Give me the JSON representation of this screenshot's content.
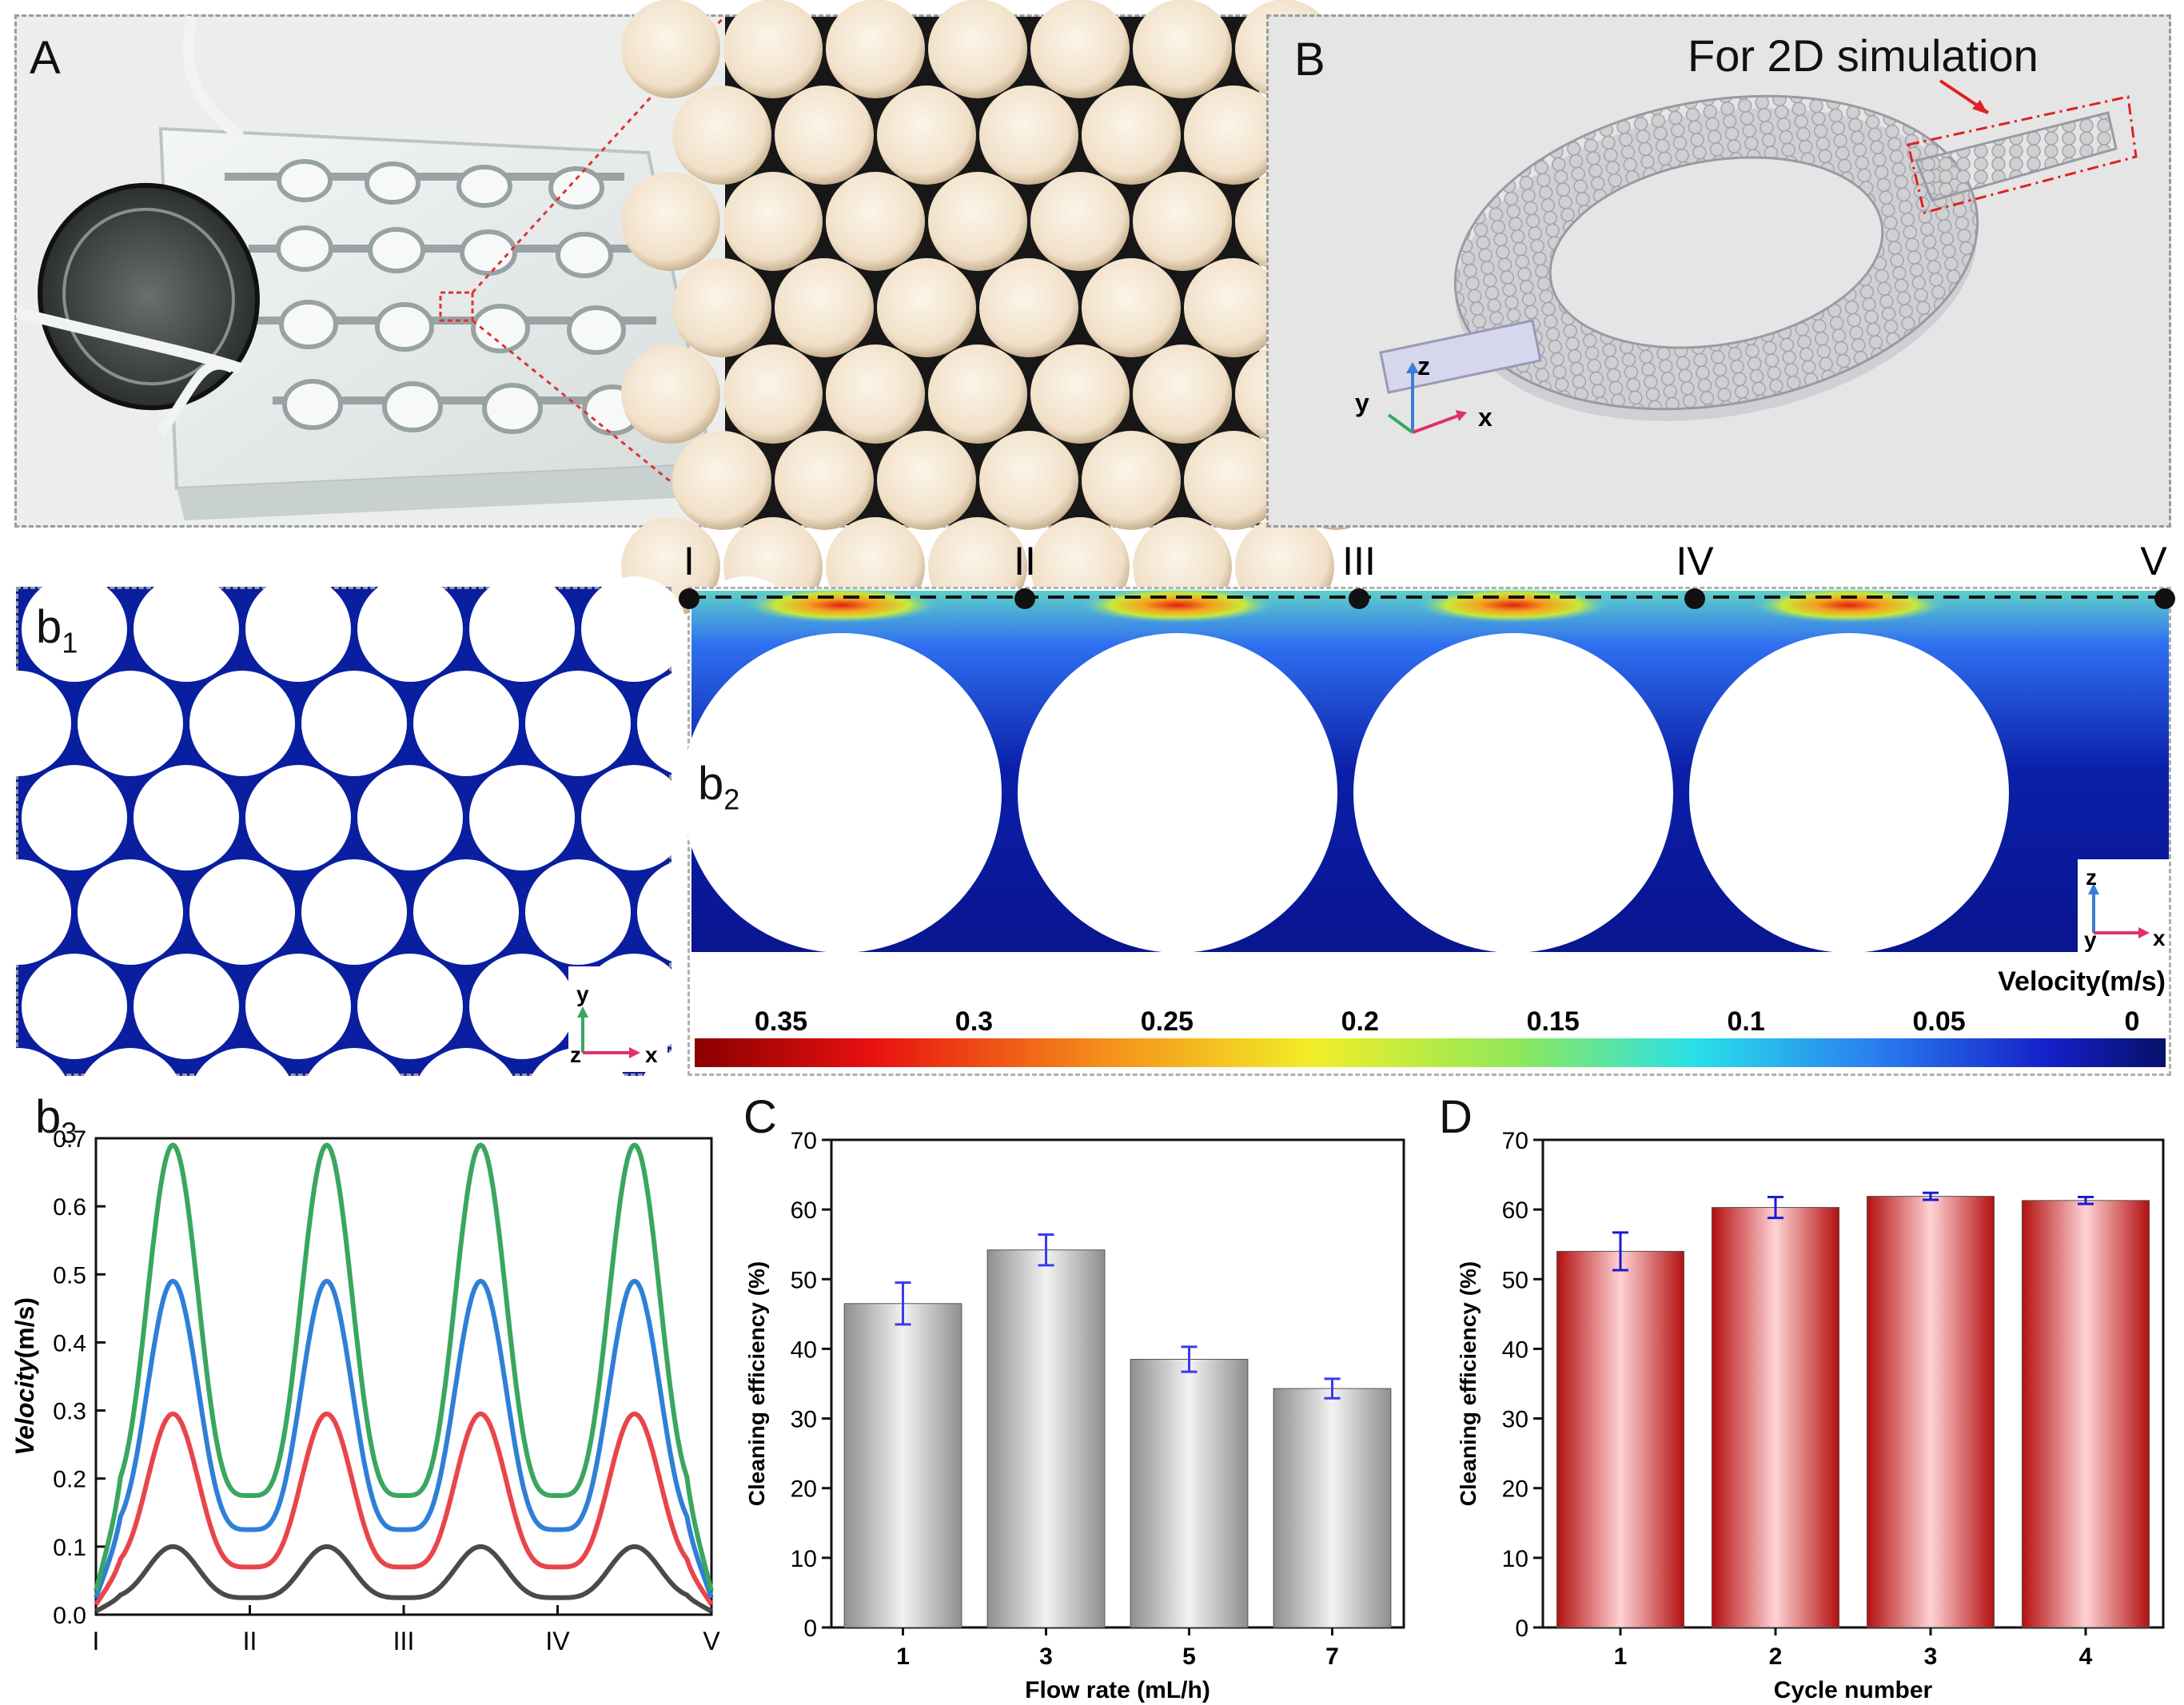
{
  "figure": {
    "panel_a": {
      "label": "A",
      "description": "Photo of PMMA microfluidic chip with serpentine chambers, coin for scale, and zoomed-in view of packed white microbeads"
    },
    "panel_b": {
      "label": "B",
      "annotation": "For 2D simulation",
      "axes": {
        "z": "z",
        "y": "y",
        "x": "x"
      }
    },
    "panel_b1": {
      "label": "b",
      "sub": "1",
      "axes": {
        "y": "y",
        "z": "z",
        "x": "x"
      }
    },
    "panel_b2": {
      "label": "b",
      "sub": "2",
      "section_labels": [
        "I",
        "II",
        "III",
        "IV",
        "V"
      ],
      "axes": {
        "z": "z",
        "y": "y",
        "x": "x"
      },
      "colorbar": {
        "title": "Velocity(m/s)",
        "ticks": [
          "0.35",
          "0.3",
          "0.25",
          "0.2",
          "0.15",
          "0.1",
          "0.05",
          "0"
        ]
      }
    }
  },
  "chart_data": [
    {
      "id": "b3",
      "type": "line",
      "label": "b",
      "sub": "3",
      "title": "",
      "xlabel": "",
      "ylabel": "Velocity(m/s)",
      "ylabel_italic": "Velocity",
      "ylabel_unit": "(m/s)",
      "ylim": [
        0,
        0.7
      ],
      "yticks": [
        "0.0",
        "0.1",
        "0.2",
        "0.3",
        "0.4",
        "0.5",
        "0.6",
        "0.7"
      ],
      "xtick_labels": [
        "I",
        "II",
        "III",
        "IV",
        "V"
      ],
      "series": [
        {
          "name": "series-1",
          "color": "#4a4a4a",
          "peak": 0.1,
          "valley": 0.025,
          "end": 0.005
        },
        {
          "name": "series-2",
          "color": "#e8454a",
          "peak": 0.295,
          "valley": 0.07,
          "end": 0.015
        },
        {
          "name": "series-3",
          "color": "#2f7fd6",
          "peak": 0.49,
          "valley": 0.125,
          "end": 0.025
        },
        {
          "name": "series-4",
          "color": "#3aa65f",
          "peak": 0.69,
          "valley": 0.175,
          "end": 0.035
        }
      ]
    },
    {
      "id": "C",
      "type": "bar",
      "label": "C",
      "title": "",
      "xlabel": "Flow rate (mL/h)",
      "ylabel": "Cleaning efficiency (%)",
      "categories": [
        "1",
        "3",
        "5",
        "7"
      ],
      "values": [
        46.5,
        54.2,
        38.5,
        34.3
      ],
      "errors": [
        3.0,
        2.2,
        1.8,
        1.4
      ],
      "ylim": [
        0,
        70
      ],
      "yticks": [
        "0",
        "10",
        "20",
        "30",
        "40",
        "50",
        "60",
        "70"
      ],
      "bar_color": "#a9a9a9",
      "error_color": "#3a3aee"
    },
    {
      "id": "D",
      "type": "bar",
      "label": "D",
      "title": "",
      "xlabel": "Cycle number",
      "ylabel": "Cleaning efficiency (%)",
      "categories": [
        "1",
        "2",
        "3",
        "4"
      ],
      "values": [
        54.0,
        60.3,
        61.9,
        61.3
      ],
      "errors": [
        2.7,
        1.5,
        0.5,
        0.5
      ],
      "ylim": [
        0,
        70
      ],
      "yticks": [
        "0",
        "10",
        "20",
        "30",
        "40",
        "50",
        "60",
        "70"
      ],
      "bar_color": "#c41a1a",
      "error_color": "#1a1ad8"
    }
  ]
}
